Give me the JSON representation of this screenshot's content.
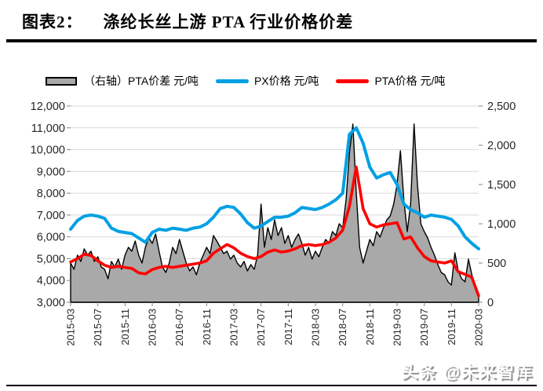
{
  "figure": {
    "label": "图表2：",
    "title": "涤纶长丝上游 PTA 行业价格价差"
  },
  "legend": [
    {
      "type": "area",
      "label": "（右轴）PTA价差 元/吨",
      "color": "#A9A9A9",
      "border": "#000000"
    },
    {
      "type": "line",
      "label": "PX价格 元/吨",
      "color": "#00A0E4"
    },
    {
      "type": "line",
      "label": "PTA价格 元/吨",
      "color": "#FF0000"
    }
  ],
  "watermark": "头条 @未来智库",
  "chart_data": {
    "type": "combo",
    "title": "涤纶长丝上游PTA行业价格价差",
    "grid": true,
    "legend_position": "top",
    "x_tick_labels": [
      "2015-03",
      "2015-07",
      "2015-11",
      "2016-03",
      "2016-07",
      "2016-11",
      "2017-03",
      "2017-07",
      "2017-11",
      "2018-03",
      "2018-07",
      "2018-11",
      "2019-03",
      "2019-07",
      "2019-11",
      "2020-03"
    ],
    "x_tick_months": [
      0,
      4,
      8,
      12,
      16,
      20,
      24,
      28,
      32,
      36,
      40,
      44,
      48,
      52,
      56,
      60
    ],
    "left_axis": {
      "min": 3000,
      "max": 12000,
      "step": 1000,
      "tick_labels": [
        "12,000",
        "11,000",
        "10,000",
        "9,000",
        "8,000",
        "7,000",
        "6,000",
        "5,000",
        "4,000",
        "3,000"
      ]
    },
    "right_axis": {
      "min": 0,
      "max": 2500,
      "step": 500,
      "tick_labels": [
        "2,500",
        "2,000",
        "1,500",
        "1,000",
        "500",
        "0"
      ]
    },
    "series": [
      {
        "name": "（右轴）PTA价差 元/吨",
        "axis": "right",
        "type": "area",
        "color": "#A9A9A9",
        "stroke": "#000000",
        "x_step": 0.5,
        "values": [
          500,
          420,
          600,
          520,
          680,
          600,
          650,
          520,
          580,
          450,
          420,
          300,
          520,
          450,
          550,
          420,
          600,
          700,
          650,
          780,
          600,
          500,
          700,
          820,
          750,
          870,
          650,
          450,
          380,
          500,
          700,
          620,
          800,
          650,
          500,
          400,
          450,
          350,
          500,
          600,
          700,
          620,
          850,
          780,
          700,
          620,
          650,
          550,
          600,
          500,
          450,
          520,
          400,
          480,
          420,
          600,
          1250,
          700,
          950,
          800,
          1050,
          850,
          950,
          750,
          850,
          700,
          800,
          870,
          750,
          600,
          700,
          550,
          650,
          580,
          700,
          800,
          750,
          900,
          850,
          1000,
          950,
          1300,
          1900,
          2270,
          1400,
          700,
          500,
          650,
          800,
          720,
          900,
          830,
          950,
          1050,
          1100,
          1250,
          1500,
          1930,
          1300,
          900,
          1250,
          2270,
          1500,
          1000,
          900,
          820,
          700,
          600,
          480,
          380,
          350,
          260,
          220,
          630,
          400,
          300,
          260,
          550,
          350,
          200,
          80
        ]
      },
      {
        "name": "PX价格 元/吨",
        "axis": "left",
        "type": "line",
        "color": "#00A0E4",
        "x_step": 1,
        "values": [
          6350,
          6750,
          6950,
          7000,
          6950,
          6850,
          6400,
          6250,
          6200,
          6150,
          5950,
          5750,
          6200,
          6350,
          6300,
          6400,
          6350,
          6300,
          6400,
          6450,
          6600,
          6900,
          7300,
          7400,
          7350,
          7050,
          6650,
          6400,
          6500,
          6700,
          6900,
          6900,
          6950,
          7100,
          7350,
          7300,
          7250,
          7350,
          7500,
          7700,
          8000,
          10700,
          11000,
          10300,
          9200,
          8700,
          8850,
          8950,
          8400,
          7500,
          7250,
          7100,
          6900,
          7000,
          6950,
          6900,
          6800,
          6500,
          6000,
          5700,
          5450
        ]
      },
      {
        "name": "PTA价格 元/吨",
        "axis": "left",
        "type": "line",
        "color": "#FF0000",
        "x_step": 1,
        "values": [
          4850,
          5000,
          5200,
          5150,
          4900,
          4700,
          4600,
          4650,
          4600,
          4550,
          4350,
          4300,
          4500,
          4600,
          4650,
          4600,
          4650,
          4700,
          4750,
          4800,
          4900,
          5250,
          5450,
          5650,
          5500,
          5250,
          5100,
          5000,
          5100,
          5300,
          5400,
          5300,
          5350,
          5450,
          5600,
          5650,
          5600,
          5650,
          5750,
          5950,
          6300,
          7400,
          9200,
          7300,
          6600,
          6450,
          6550,
          6600,
          6650,
          5900,
          6000,
          5500,
          5100,
          4900,
          4850,
          4800,
          4900,
          4400,
          4280,
          4150,
          3300
        ]
      }
    ]
  }
}
